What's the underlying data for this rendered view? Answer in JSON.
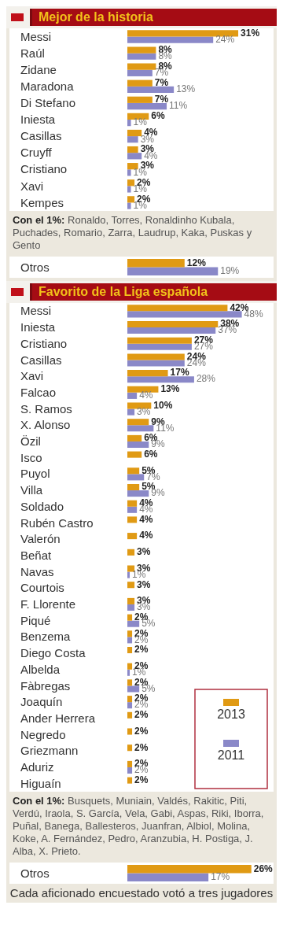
{
  "chart_data": [
    {
      "type": "bar",
      "orientation": "horizontal",
      "title": "Mejor de la historia",
      "tick_labels": "y",
      "legend": false,
      "categories": [
        "Messi",
        "Raúl",
        "Zidane",
        "Maradona",
        "Di Stefano",
        "Iniesta",
        "Casillas",
        "Cruyff",
        "Cristiano",
        "Xavi",
        "Kempes"
      ],
      "series": [
        {
          "color": "#e09a14",
          "values": [
            31,
            8,
            8,
            7,
            7,
            6,
            4,
            3,
            3,
            2,
            2
          ],
          "value_labels": [
            "31%",
            "8%",
            "8%",
            "7%",
            "7%",
            "6%",
            "4%",
            "3%",
            "3%",
            "2%",
            "2%"
          ]
        },
        {
          "color": "#8a88c8",
          "values": [
            24,
            8,
            7,
            13,
            11,
            1,
            3,
            4,
            1,
            1,
            1
          ],
          "value_labels": [
            "24%",
            "8%",
            "7%",
            "13%",
            "11%",
            "1%",
            "3%",
            "4%",
            "1%",
            "1%",
            "1%"
          ]
        }
      ],
      "annotations": [
        "Con el 1%: Ronaldo, Torres, Ronaldinho Kubala, Puchades, Romario, Zarra, Laudrup, Kaka, Puskas y Gento"
      ]
    },
    {
      "type": "bar",
      "orientation": "horizontal",
      "tick_labels": "y",
      "legend": false,
      "categories": [
        "Otros"
      ],
      "series": [
        {
          "color": "#e09a14",
          "values": [
            12
          ],
          "value_labels": [
            "12%"
          ]
        },
        {
          "color": "#8a88c8",
          "values": [
            19
          ],
          "value_labels": [
            "19%"
          ]
        }
      ]
    },
    {
      "type": "bar",
      "orientation": "horizontal",
      "title": "Favorito de la Liga española",
      "tick_labels": "y",
      "legend": "bottom right",
      "categories": [
        "Messi",
        "Iniesta",
        "Cristiano",
        "Casillas",
        "Xavi",
        "Falcao",
        "S. Ramos",
        "X. Alonso",
        "Özil",
        "Isco",
        "Puyol",
        "Villa",
        "Soldado",
        "Rubén Castro",
        "Valerón",
        "Beñat",
        "Navas",
        "Courtois",
        "F. Llorente",
        "Piqué",
        "Benzema",
        "Diego Costa",
        "Albelda",
        "Fàbregas",
        "Joaquín",
        "Ander Herrera",
        "Negredo",
        "Griezmann",
        "Aduriz",
        "Higuaín"
      ],
      "series": [
        {
          "name": "2013",
          "color": "#e09a14",
          "values": [
            42,
            38,
            27,
            24,
            17,
            13,
            10,
            9,
            6,
            6,
            5,
            5,
            4,
            4,
            4,
            3,
            3,
            3,
            3,
            2,
            2,
            2,
            2,
            2,
            2,
            2,
            2,
            2,
            2,
            2
          ],
          "value_labels": [
            "42%",
            "38%",
            "27%",
            "24%",
            "17%",
            "13%",
            "10%",
            "9%",
            "6%",
            "6%",
            "5%",
            "5%",
            "4%",
            "4%",
            "4%",
            "3%",
            "3%",
            "3%",
            "3%",
            "2%",
            "2%",
            "2%",
            "2%",
            "2%",
            "2%",
            "2%",
            "2%",
            "2%",
            "2%",
            "2%"
          ]
        },
        {
          "name": "2011",
          "color": "#8a88c8",
          "values": [
            48,
            37,
            27,
            24,
            28,
            4,
            3,
            11,
            9,
            null,
            7,
            9,
            4,
            null,
            null,
            null,
            1,
            null,
            3,
            5,
            2,
            null,
            1,
            5,
            2,
            null,
            null,
            null,
            2,
            null
          ],
          "value_labels": [
            "48%",
            "37%",
            "27%",
            "24%",
            "28%",
            "4%",
            "3%",
            "11%",
            "9%",
            null,
            "7%",
            "9%",
            "4%",
            null,
            null,
            null,
            "1%",
            null,
            "3%",
            "5%",
            "2%",
            null,
            "1%",
            "5%",
            "2%",
            null,
            null,
            null,
            "2%",
            null
          ]
        }
      ],
      "annotations": [
        "Con el 1%: Busquets, Muniain, Valdés, Rakitic, Piti, Verdú, Iraola, S. García, Vela, Gabi, Aspas, Riki, Iborra, Puñal, Banega, Ballesteros, Juanfran, Albiol, Molina, Koke, A. Fernández, Pedro, Aranzubia, H. Postiga, J. Alba, X. Prieto."
      ]
    },
    {
      "type": "bar",
      "orientation": "horizontal",
      "tick_labels": "y",
      "legend": false,
      "categories": [
        "Otros"
      ],
      "series": [
        {
          "color": "#e09a14",
          "values": [
            26
          ],
          "value_labels": [
            "26%"
          ]
        },
        {
          "color": "#8a88c8",
          "values": [
            17
          ],
          "value_labels": [
            "17%"
          ]
        }
      ],
      "annotations": [
        "Cada aficionado encuestado votó a tres jugadores"
      ]
    }
  ]
}
